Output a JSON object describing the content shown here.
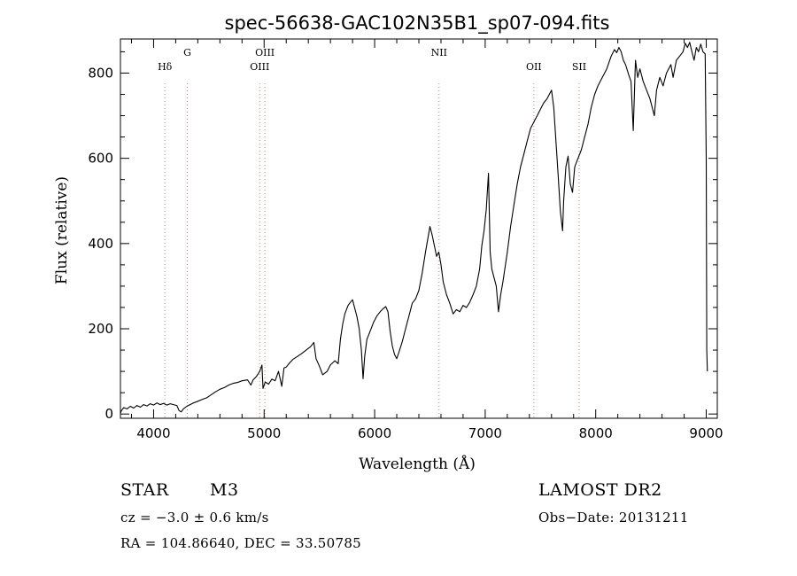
{
  "chart_data": {
    "type": "line",
    "title": "spec-56638-GAC102N35B1_sp07-094.fits",
    "xlabel": "Wavelength (Å)",
    "ylabel": "Flux (relative)",
    "xlim": [
      3700,
      9100
    ],
    "ylim": [
      -10,
      880
    ],
    "xticks": [
      4000,
      5000,
      6000,
      7000,
      8000,
      9000
    ],
    "yticks": [
      0,
      200,
      400,
      600,
      800
    ],
    "grid": false,
    "series": [
      {
        "points": [
          [
            3700,
            2
          ],
          [
            3710,
            8
          ],
          [
            3730,
            15
          ],
          [
            3760,
            12
          ],
          [
            3790,
            18
          ],
          [
            3820,
            14
          ],
          [
            3850,
            20
          ],
          [
            3880,
            16
          ],
          [
            3910,
            22
          ],
          [
            3940,
            19
          ],
          [
            3970,
            24
          ],
          [
            4000,
            21
          ],
          [
            4030,
            26
          ],
          [
            4060,
            22
          ],
          [
            4090,
            25
          ],
          [
            4120,
            21
          ],
          [
            4150,
            24
          ],
          [
            4180,
            22
          ],
          [
            4210,
            20
          ],
          [
            4230,
            8
          ],
          [
            4250,
            5
          ],
          [
            4270,
            12
          ],
          [
            4300,
            18
          ],
          [
            4330,
            22
          ],
          [
            4360,
            26
          ],
          [
            4400,
            30
          ],
          [
            4440,
            34
          ],
          [
            4480,
            38
          ],
          [
            4520,
            45
          ],
          [
            4560,
            52
          ],
          [
            4600,
            58
          ],
          [
            4640,
            62
          ],
          [
            4680,
            68
          ],
          [
            4720,
            72
          ],
          [
            4760,
            74
          ],
          [
            4800,
            78
          ],
          [
            4850,
            80
          ],
          [
            4880,
            68
          ],
          [
            4900,
            80
          ],
          [
            4930,
            88
          ],
          [
            4960,
            100
          ],
          [
            4980,
            115
          ],
          [
            4990,
            60
          ],
          [
            5010,
            75
          ],
          [
            5040,
            70
          ],
          [
            5070,
            82
          ],
          [
            5100,
            78
          ],
          [
            5130,
            100
          ],
          [
            5160,
            65
          ],
          [
            5180,
            108
          ],
          [
            5200,
            110
          ],
          [
            5230,
            120
          ],
          [
            5260,
            128
          ],
          [
            5300,
            135
          ],
          [
            5340,
            142
          ],
          [
            5380,
            150
          ],
          [
            5420,
            158
          ],
          [
            5450,
            168
          ],
          [
            5470,
            130
          ],
          [
            5500,
            112
          ],
          [
            5530,
            92
          ],
          [
            5570,
            100
          ],
          [
            5600,
            115
          ],
          [
            5640,
            125
          ],
          [
            5670,
            118
          ],
          [
            5690,
            175
          ],
          [
            5710,
            210
          ],
          [
            5730,
            235
          ],
          [
            5760,
            255
          ],
          [
            5780,
            262
          ],
          [
            5800,
            268
          ],
          [
            5820,
            248
          ],
          [
            5840,
            228
          ],
          [
            5860,
            200
          ],
          [
            5880,
            150
          ],
          [
            5895,
            83
          ],
          [
            5910,
            135
          ],
          [
            5930,
            175
          ],
          [
            5960,
            195
          ],
          [
            5990,
            215
          ],
          [
            6020,
            230
          ],
          [
            6050,
            240
          ],
          [
            6080,
            248
          ],
          [
            6100,
            252
          ],
          [
            6120,
            240
          ],
          [
            6140,
            195
          ],
          [
            6160,
            160
          ],
          [
            6180,
            140
          ],
          [
            6200,
            130
          ],
          [
            6220,
            145
          ],
          [
            6250,
            170
          ],
          [
            6280,
            200
          ],
          [
            6310,
            230
          ],
          [
            6340,
            260
          ],
          [
            6370,
            270
          ],
          [
            6400,
            290
          ],
          [
            6430,
            330
          ],
          [
            6460,
            380
          ],
          [
            6480,
            410
          ],
          [
            6500,
            440
          ],
          [
            6520,
            420
          ],
          [
            6540,
            395
          ],
          [
            6560,
            370
          ],
          [
            6580,
            380
          ],
          [
            6600,
            350
          ],
          [
            6620,
            310
          ],
          [
            6650,
            280
          ],
          [
            6680,
            260
          ],
          [
            6710,
            235
          ],
          [
            6740,
            245
          ],
          [
            6770,
            240
          ],
          [
            6800,
            255
          ],
          [
            6830,
            250
          ],
          [
            6860,
            262
          ],
          [
            6890,
            280
          ],
          [
            6920,
            300
          ],
          [
            6950,
            340
          ],
          [
            6970,
            395
          ],
          [
            6990,
            430
          ],
          [
            7010,
            480
          ],
          [
            7030,
            565
          ],
          [
            7045,
            380
          ],
          [
            7060,
            340
          ],
          [
            7080,
            320
          ],
          [
            7100,
            300
          ],
          [
            7120,
            240
          ],
          [
            7140,
            280
          ],
          [
            7160,
            310
          ],
          [
            7180,
            345
          ],
          [
            7200,
            380
          ],
          [
            7230,
            440
          ],
          [
            7260,
            490
          ],
          [
            7290,
            540
          ],
          [
            7320,
            580
          ],
          [
            7350,
            610
          ],
          [
            7380,
            640
          ],
          [
            7410,
            670
          ],
          [
            7440,
            685
          ],
          [
            7470,
            700
          ],
          [
            7500,
            715
          ],
          [
            7530,
            730
          ],
          [
            7560,
            740
          ],
          [
            7580,
            750
          ],
          [
            7600,
            760
          ],
          [
            7620,
            720
          ],
          [
            7640,
            640
          ],
          [
            7660,
            560
          ],
          [
            7680,
            475
          ],
          [
            7700,
            430
          ],
          [
            7710,
            500
          ],
          [
            7730,
            580
          ],
          [
            7750,
            605
          ],
          [
            7770,
            540
          ],
          [
            7790,
            520
          ],
          [
            7810,
            580
          ],
          [
            7840,
            600
          ],
          [
            7870,
            620
          ],
          [
            7900,
            650
          ],
          [
            7930,
            680
          ],
          [
            7960,
            720
          ],
          [
            7990,
            750
          ],
          [
            8020,
            770
          ],
          [
            8060,
            790
          ],
          [
            8100,
            810
          ],
          [
            8140,
            840
          ],
          [
            8170,
            855
          ],
          [
            8190,
            848
          ],
          [
            8210,
            860
          ],
          [
            8230,
            850
          ],
          [
            8250,
            830
          ],
          [
            8270,
            820
          ],
          [
            8300,
            795
          ],
          [
            8320,
            780
          ],
          [
            8340,
            665
          ],
          [
            8360,
            830
          ],
          [
            8380,
            790
          ],
          [
            8400,
            810
          ],
          [
            8430,
            780
          ],
          [
            8460,
            760
          ],
          [
            8490,
            740
          ],
          [
            8510,
            720
          ],
          [
            8530,
            700
          ],
          [
            8550,
            760
          ],
          [
            8580,
            790
          ],
          [
            8610,
            770
          ],
          [
            8640,
            800
          ],
          [
            8680,
            820
          ],
          [
            8700,
            790
          ],
          [
            8730,
            830
          ],
          [
            8760,
            840
          ],
          [
            8790,
            850
          ],
          [
            8810,
            870
          ],
          [
            8830,
            860
          ],
          [
            8850,
            872
          ],
          [
            8870,
            850
          ],
          [
            8890,
            830
          ],
          [
            8910,
            860
          ],
          [
            8930,
            850
          ],
          [
            8950,
            868
          ],
          [
            8970,
            850
          ],
          [
            8990,
            845
          ],
          [
            9000,
            600
          ],
          [
            9005,
            150
          ],
          [
            9010,
            100
          ]
        ]
      }
    ],
    "lines": [
      {
        "x": 4102,
        "label": "Hδ",
        "row": 1
      },
      {
        "x": 4305,
        "label": "G",
        "row": 0
      },
      {
        "x": 4960,
        "label": "OIII",
        "row": 1
      },
      {
        "x": 5007,
        "label": "OIII",
        "row": 0
      },
      {
        "x": 6583,
        "label": "NII",
        "row": 0
      },
      {
        "x": 7440,
        "label": "OII",
        "row": 1
      },
      {
        "x": 7850,
        "label": "SII",
        "row": 1
      }
    ]
  },
  "info": {
    "object_class": "STAR",
    "subclass": "M3",
    "survey": "LAMOST DR2",
    "cz": "cz = −3.0 ± 0.6 km/s",
    "obs_date": "Obs−Date: 20131211",
    "coords": "RA = 104.86640, DEC =  33.50785"
  }
}
